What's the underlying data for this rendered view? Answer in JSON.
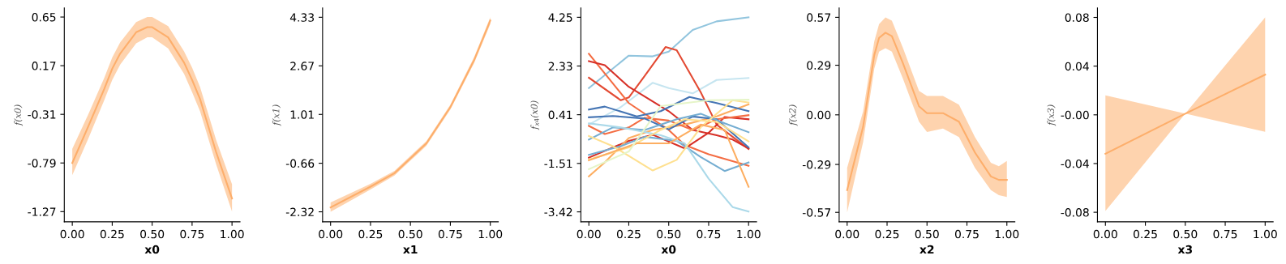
{
  "chart_data": [
    {
      "type": "line",
      "xlabel": "x0",
      "ylabel": "f(x0)",
      "xlim": [
        -0.05,
        1.05
      ],
      "ylim": [
        -1.37,
        0.74
      ],
      "xticks": [
        {
          "value": 0,
          "label": "0.00"
        },
        {
          "value": 0.25,
          "label": "0.25"
        },
        {
          "value": 0.5,
          "label": "0.50"
        },
        {
          "value": 0.75,
          "label": "0.75"
        },
        {
          "value": 1,
          "label": "1.00"
        }
      ],
      "yticks": [
        -1.27,
        -0.79,
        -0.31,
        0.17,
        0.65
      ],
      "x": [
        0,
        0.1,
        0.2,
        0.25,
        0.3,
        0.4,
        0.47,
        0.5,
        0.6,
        0.7,
        0.75,
        0.8,
        0.9,
        1.0
      ],
      "series": [
        {
          "color": "#fdae6b",
          "values": [
            -0.79,
            -0.43,
            -0.06,
            0.14,
            0.29,
            0.5,
            0.55,
            0.55,
            0.45,
            0.2,
            0.03,
            -0.16,
            -0.68,
            -1.14
          ],
          "lower": [
            -0.91,
            -0.55,
            -0.17,
            0.03,
            0.18,
            0.39,
            0.45,
            0.45,
            0.34,
            0.09,
            -0.09,
            -0.28,
            -0.8,
            -1.27
          ],
          "upper": [
            -0.65,
            -0.31,
            0.05,
            0.25,
            0.4,
            0.6,
            0.65,
            0.65,
            0.56,
            0.31,
            0.15,
            -0.04,
            -0.56,
            -1.0
          ]
        }
      ]
    },
    {
      "type": "line",
      "xlabel": "x1",
      "ylabel": "f(x1)",
      "xlim": [
        -0.05,
        1.05
      ],
      "ylim": [
        -2.66,
        4.65
      ],
      "xticks": [
        {
          "value": 0,
          "label": "0.00"
        },
        {
          "value": 0.25,
          "label": "0.25"
        },
        {
          "value": 0.5,
          "label": "0.50"
        },
        {
          "value": 0.75,
          "label": "0.75"
        },
        {
          "value": 1,
          "label": "1.00"
        }
      ],
      "yticks": [
        -2.32,
        -0.66,
        1.01,
        2.67,
        4.33
      ],
      "x": [
        0,
        0.25,
        0.4,
        0.5,
        0.6,
        0.75,
        0.9,
        1.0
      ],
      "series": [
        {
          "color": "#fdae6b",
          "values": [
            -2.17,
            -1.46,
            -1.0,
            -0.49,
            0.02,
            1.26,
            2.88,
            4.22
          ],
          "lower": [
            -2.32,
            -1.56,
            -1.08,
            -0.57,
            -0.06,
            1.18,
            2.78,
            4.1
          ],
          "upper": [
            -2.0,
            -1.36,
            -0.92,
            -0.41,
            0.1,
            1.34,
            2.98,
            4.33
          ]
        }
      ]
    },
    {
      "type": "line",
      "xlabel": "x0",
      "ylabel": "f$_{x4}$(x0)",
      "xlim": [
        -0.05,
        1.05
      ],
      "ylim": [
        -3.81,
        4.62
      ],
      "xticks": [
        {
          "value": 0,
          "label": "0.00"
        },
        {
          "value": 0.25,
          "label": "0.25"
        },
        {
          "value": 0.5,
          "label": "0.50"
        },
        {
          "value": 0.75,
          "label": "0.75"
        },
        {
          "value": 1,
          "label": "1.00"
        }
      ],
      "yticks": [
        -3.42,
        -1.51,
        0.41,
        2.33,
        4.25
      ],
      "series": [
        {
          "color": "#92c5de",
          "x": [
            0,
            0.25,
            0.4,
            0.5,
            0.65,
            0.8,
            1
          ],
          "values": [
            1.46,
            2.74,
            2.71,
            2.9,
            3.75,
            4.09,
            4.25
          ]
        },
        {
          "color": "#c6e5f0",
          "x": [
            0,
            0.2,
            0.4,
            0.5,
            0.65,
            0.8,
            1
          ],
          "values": [
            0.02,
            0.71,
            1.67,
            1.46,
            1.25,
            1.78,
            1.86
          ]
        },
        {
          "color": "#e34a33",
          "x": [
            0,
            0.2,
            0.25,
            0.35,
            0.48,
            0.55,
            0.7,
            0.8,
            1
          ],
          "values": [
            1.87,
            0.98,
            1.09,
            1.94,
            3.08,
            2.95,
            1.3,
            0.02,
            -0.94
          ]
        },
        {
          "color": "#f46d43",
          "x": [
            0,
            0.25,
            0.5,
            0.6,
            0.75,
            1
          ],
          "values": [
            2.81,
            0.87,
            -0.19,
            -0.78,
            -1.15,
            -1.6
          ]
        },
        {
          "color": "#d73027",
          "x": [
            0,
            0.1,
            0.25,
            0.5,
            0.65,
            0.8,
            0.9,
            1
          ],
          "values": [
            2.52,
            2.36,
            1.51,
            0.55,
            -0.19,
            -0.4,
            -0.57,
            -0.92
          ]
        },
        {
          "color": "#d73027",
          "x": [
            0,
            0.25,
            0.4,
            0.6,
            0.75,
            0.85,
            1
          ],
          "values": [
            -1.28,
            -0.62,
            -0.38,
            -0.92,
            -0.3,
            0.32,
            0.23
          ]
        },
        {
          "color": "#fdae61",
          "x": [
            0,
            0.1,
            0.25,
            0.4,
            0.6,
            0.8,
            1
          ],
          "values": [
            -2.02,
            -1.47,
            -0.51,
            -0.19,
            0.02,
            0.34,
            0.82
          ]
        },
        {
          "color": "#f46d43",
          "x": [
            0,
            0.1,
            0.25,
            0.35,
            0.5,
            0.65,
            0.8,
            1
          ],
          "values": [
            -0.03,
            -0.35,
            -0.09,
            0.29,
            0.18,
            -0.19,
            0.23,
            0.39
          ]
        },
        {
          "color": "#4575b4",
          "x": [
            0,
            0.1,
            0.3,
            0.45,
            0.63,
            0.8,
            1
          ],
          "values": [
            0.61,
            0.73,
            0.34,
            0.55,
            1.11,
            0.87,
            0.55
          ]
        },
        {
          "color": "#4575b4",
          "x": [
            0,
            0.15,
            0.35,
            0.5,
            0.65,
            0.8,
            1
          ],
          "values": [
            0.31,
            0.36,
            0.26,
            -0.17,
            0.34,
            0.23,
            -0.88
          ]
        },
        {
          "color": "#74add1",
          "x": [
            0,
            0.15,
            0.35,
            0.55,
            0.7,
            0.85,
            1
          ],
          "values": [
            -0.57,
            -0.09,
            -0.19,
            0.23,
            0.45,
            0.07,
            -0.28
          ]
        },
        {
          "color": "#74add1",
          "x": [
            0,
            0.2,
            0.35,
            0.55,
            0.7,
            0.85,
            1
          ],
          "values": [
            -1.17,
            -0.83,
            -0.46,
            -0.62,
            -1.26,
            -1.81,
            -1.47
          ]
        },
        {
          "color": "#abd9e9",
          "x": [
            0,
            0.2,
            0.45,
            0.6,
            0.75,
            0.9,
            1
          ],
          "values": [
            0.07,
            -0.09,
            -0.4,
            -0.72,
            -2.11,
            -3.23,
            -3.41
          ]
        },
        {
          "color": "#fee090",
          "x": [
            0,
            0.15,
            0.4,
            0.55,
            0.7,
            0.9,
            1
          ],
          "values": [
            -0.43,
            -0.83,
            -1.79,
            -1.37,
            -0.09,
            0.98,
            0.89
          ]
        },
        {
          "color": "#fee090",
          "x": [
            0,
            0.25,
            0.45,
            0.6,
            0.8,
            1
          ],
          "values": [
            -1.36,
            -0.88,
            -0.19,
            0.23,
            0.13,
            -0.64
          ]
        },
        {
          "color": "#fdae61",
          "x": [
            0,
            0.3,
            0.5,
            0.7,
            0.85,
            1
          ],
          "values": [
            -1.39,
            -0.72,
            -0.72,
            0.02,
            -0.19,
            -2.43
          ]
        },
        {
          "color": "#e6f5c8",
          "x": [
            0,
            0.25,
            0.45,
            0.75,
            1
          ],
          "values": [
            -1.74,
            -1.04,
            0.75,
            0.98,
            1.0
          ]
        }
      ]
    },
    {
      "type": "line",
      "xlabel": "x2",
      "ylabel": "f(x2)",
      "xlim": [
        -0.05,
        1.05
      ],
      "ylim": [
        -0.625,
        0.625
      ],
      "xticks": [
        {
          "value": 0,
          "label": "0.00"
        },
        {
          "value": 0.25,
          "label": "0.25"
        },
        {
          "value": 0.5,
          "label": "0.50"
        },
        {
          "value": 0.75,
          "label": "0.75"
        },
        {
          "value": 1,
          "label": "1.00"
        }
      ],
      "yticks": [
        -0.57,
        -0.29,
        {
          "value": 0,
          "label": "0.00"
        },
        0.29,
        0.57
      ],
      "x": [
        0,
        0.1,
        0.17,
        0.2,
        0.24,
        0.28,
        0.35,
        0.45,
        0.5,
        0.6,
        0.7,
        0.8,
        0.9,
        0.95,
        1.0
      ],
      "series": [
        {
          "color": "#fdae6b",
          "values": [
            -0.44,
            -0.07,
            0.35,
            0.45,
            0.48,
            0.46,
            0.3,
            0.05,
            0.01,
            0.01,
            -0.04,
            -0.22,
            -0.36,
            -0.38,
            -0.38
          ],
          "lower": [
            -0.57,
            -0.16,
            0.27,
            0.37,
            0.39,
            0.37,
            0.21,
            -0.04,
            -0.1,
            -0.08,
            -0.13,
            -0.31,
            -0.44,
            -0.47,
            -0.48
          ],
          "upper": [
            -0.31,
            0.02,
            0.43,
            0.53,
            0.57,
            0.55,
            0.39,
            0.14,
            0.11,
            0.11,
            0.06,
            -0.13,
            -0.28,
            -0.3,
            -0.27
          ]
        }
      ]
    },
    {
      "type": "line",
      "xlabel": "x3",
      "ylabel": "f(x3)",
      "xlim": [
        -0.05,
        1.05
      ],
      "ylim": [
        -0.0878,
        0.0878
      ],
      "xticks": [
        {
          "value": 0,
          "label": "0.00"
        },
        {
          "value": 0.25,
          "label": "0.25"
        },
        {
          "value": 0.5,
          "label": "0.50"
        },
        {
          "value": 0.75,
          "label": "0.75"
        },
        {
          "value": 1,
          "label": "1.00"
        }
      ],
      "yticks": [
        -0.08,
        -0.04,
        {
          "value": 0,
          "label": "-0.00"
        },
        0.04,
        0.08
      ],
      "x": [
        0,
        0.5,
        1
      ],
      "series": [
        {
          "color": "#fdae6b",
          "values": [
            -0.032,
            0.001,
            0.033
          ],
          "lower": [
            -0.079,
            0.001,
            -0.014
          ],
          "upper": [
            0.016,
            0.001,
            0.08
          ]
        }
      ]
    }
  ]
}
